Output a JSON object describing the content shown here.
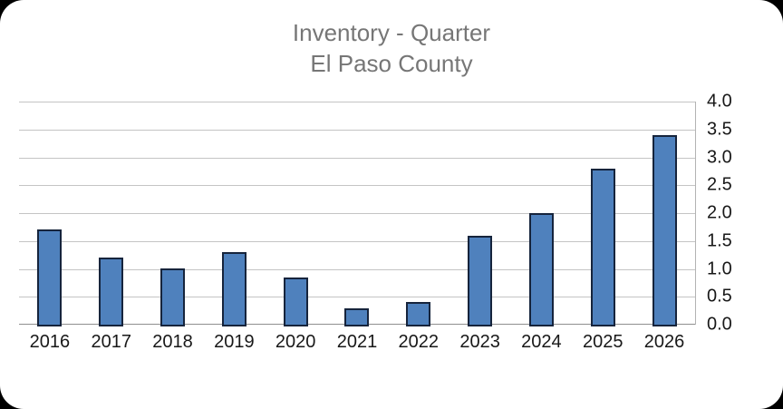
{
  "window": {
    "background_color": "#000000",
    "card_color": "#ffffff"
  },
  "chart_data": {
    "type": "bar",
    "title": "Inventory - Quarter",
    "subtitle": "El Paso County",
    "categories": [
      "2016",
      "2017",
      "2018",
      "2019",
      "2020",
      "2021",
      "2022",
      "2023",
      "2024",
      "2025",
      "2026"
    ],
    "values": [
      1.7,
      1.2,
      1.0,
      1.3,
      0.85,
      0.3,
      0.4,
      1.6,
      2.0,
      2.8,
      3.4
    ],
    "xlabel": "",
    "ylabel": "",
    "ylim": [
      0.0,
      4.0
    ],
    "ytick_step": 0.5,
    "ytick_labels_top_to_bottom": [
      "4.0",
      "3.5",
      "3.0",
      "2.5",
      "2.0",
      "1.5",
      "1.0",
      "0.5",
      "0.0"
    ],
    "yaxis_side": "right",
    "grid": true,
    "legend": false,
    "colors": {
      "bar_fill": "#4f81bd",
      "bar_border": "#16243c",
      "gridline": "#c4c4c4",
      "axis_line": "#8f8f8f",
      "title_text": "#767676",
      "tick_text": "#181818"
    }
  }
}
